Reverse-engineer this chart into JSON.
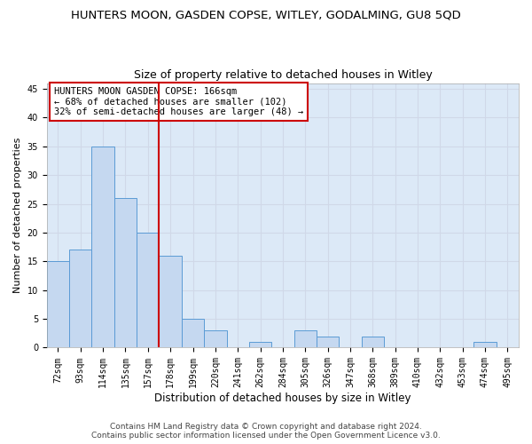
{
  "title": "HUNTERS MOON, GASDEN COPSE, WITLEY, GODALMING, GU8 5QD",
  "subtitle": "Size of property relative to detached houses in Witley",
  "xlabel": "Distribution of detached houses by size in Witley",
  "ylabel": "Number of detached properties",
  "categories": [
    "72sqm",
    "93sqm",
    "114sqm",
    "135sqm",
    "157sqm",
    "178sqm",
    "199sqm",
    "220sqm",
    "241sqm",
    "262sqm",
    "284sqm",
    "305sqm",
    "326sqm",
    "347sqm",
    "368sqm",
    "389sqm",
    "410sqm",
    "432sqm",
    "453sqm",
    "474sqm",
    "495sqm"
  ],
  "values": [
    15,
    17,
    35,
    26,
    20,
    16,
    5,
    3,
    0,
    1,
    0,
    3,
    2,
    0,
    2,
    0,
    0,
    0,
    0,
    1,
    0
  ],
  "bar_color": "#c5d8f0",
  "bar_edge_color": "#5b9bd5",
  "grid_color": "#d0d8e8",
  "bg_color": "#dce9f7",
  "vline_x": 4.5,
  "vline_color": "#cc0000",
  "annotation_text": "HUNTERS MOON GASDEN COPSE: 166sqm\n← 68% of detached houses are smaller (102)\n32% of semi-detached houses are larger (48) →",
  "annotation_box_color": "#cc0000",
  "footer_line1": "Contains HM Land Registry data © Crown copyright and database right 2024.",
  "footer_line2": "Contains public sector information licensed under the Open Government Licence v3.0.",
  "ylim": [
    0,
    46
  ],
  "yticks": [
    0,
    5,
    10,
    15,
    20,
    25,
    30,
    35,
    40,
    45
  ],
  "title_fontsize": 9.5,
  "subtitle_fontsize": 9,
  "xlabel_fontsize": 8.5,
  "ylabel_fontsize": 8,
  "tick_fontsize": 7,
  "annot_fontsize": 7.5,
  "footer_fontsize": 6.5
}
